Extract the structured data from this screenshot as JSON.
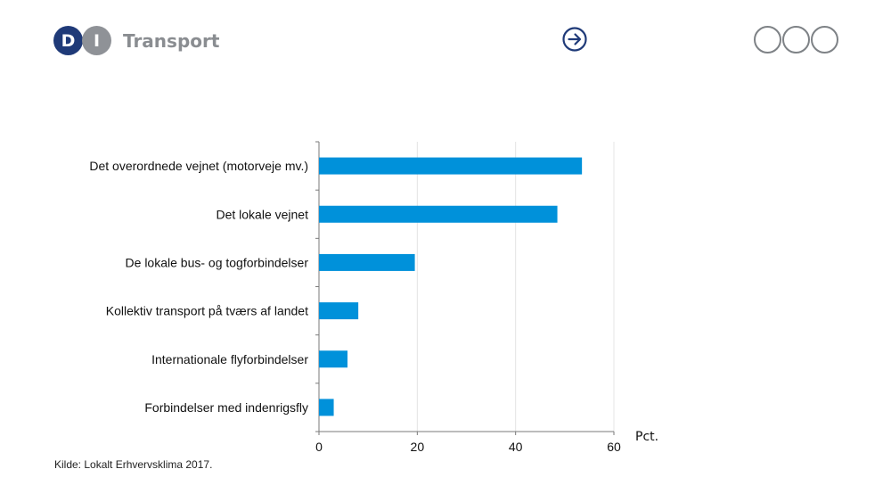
{
  "header": {
    "logo_letters": [
      "D",
      "I"
    ],
    "logo_text": "Transport",
    "colors": {
      "logo_d": "#1f3a78",
      "logo_i": "#8f9297",
      "arrow": "#1f3a78",
      "dots": "#7e8286"
    }
  },
  "chart_data": {
    "type": "bar",
    "orientation": "horizontal",
    "categories": [
      "Det overordnede vejnet (motorveje mv.)",
      "Det lokale vejnet",
      "De lokale bus- og togforbindelser",
      "Kollektiv transport på tværs af landet",
      "Internationale flyforbindelser",
      "Forbindelser med indenrigsfly"
    ],
    "values": [
      53.5,
      48.5,
      19.5,
      8,
      5.8,
      3
    ],
    "xlim": [
      0,
      60
    ],
    "xticks": [
      0,
      20,
      40,
      60
    ],
    "xlabel": "Pct.",
    "grid": true,
    "bar_color": "#0091da"
  },
  "source": "Kilde: Lokalt Erhvervsklima 2017."
}
